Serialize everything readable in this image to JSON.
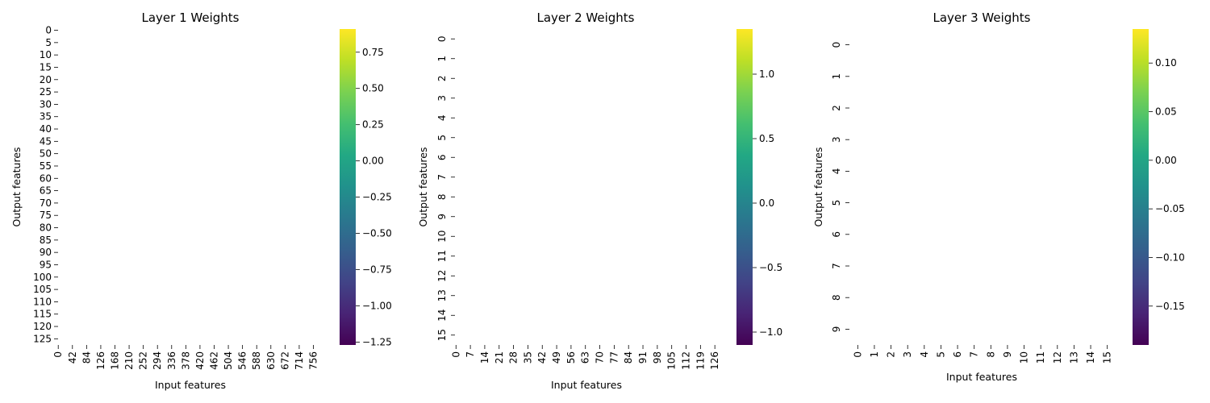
{
  "chart_data": [
    {
      "type": "heatmap",
      "title": "Layer 1 Weights",
      "xlabel": "Input features",
      "ylabel": "Output features",
      "x_ticks": [
        "0",
        "42",
        "84",
        "126",
        "168",
        "210",
        "252",
        "294",
        "336",
        "378",
        "420",
        "462",
        "504",
        "546",
        "588",
        "630",
        "672",
        "714",
        "756"
      ],
      "y_ticks": [
        "0",
        "5",
        "10",
        "15",
        "20",
        "25",
        "30",
        "35",
        "40",
        "45",
        "50",
        "55",
        "60",
        "65",
        "70",
        "75",
        "80",
        "85",
        "90",
        "95",
        "100",
        "105",
        "110",
        "115",
        "120",
        "125"
      ],
      "x_count": 784,
      "y_count": 128,
      "x_tick_step": 42,
      "y_tick_step": 5,
      "y_tick_rotation": 0,
      "colormap": "viridis",
      "colorbar_range": [
        -1.27,
        0.91
      ],
      "colorbar_ticks": [
        "0.75",
        "0.50",
        "0.25",
        "0.00",
        "−0.25",
        "−0.50",
        "−0.75",
        "−1.00",
        "−1.25"
      ],
      "colorbar_tick_values": [
        0.75,
        0.5,
        0.25,
        0.0,
        -0.25,
        -0.5,
        -0.75,
        -1.0,
        -1.25
      ]
    },
    {
      "type": "heatmap",
      "title": "Layer 2 Weights",
      "xlabel": "Input features",
      "ylabel": "Output features",
      "x_ticks": [
        "0",
        "7",
        "14",
        "21",
        "28",
        "35",
        "42",
        "49",
        "56",
        "63",
        "70",
        "77",
        "84",
        "91",
        "98",
        "105",
        "112",
        "119",
        "126"
      ],
      "y_ticks": [
        "0",
        "1",
        "2",
        "3",
        "4",
        "5",
        "6",
        "7",
        "8",
        "9",
        "10",
        "11",
        "12",
        "13",
        "14",
        "15"
      ],
      "x_count": 128,
      "y_count": 16,
      "x_tick_step": 7,
      "y_tick_step": 1,
      "y_tick_rotation": -90,
      "colormap": "viridis",
      "colorbar_range": [
        -1.1,
        1.35
      ],
      "colorbar_ticks": [
        "1.0",
        "0.5",
        "0.0",
        "−0.5",
        "−1.0"
      ],
      "colorbar_tick_values": [
        1.0,
        0.5,
        0.0,
        -0.5,
        -1.0
      ]
    },
    {
      "type": "heatmap",
      "title": "Layer 3 Weights",
      "xlabel": "Input features",
      "ylabel": "Output features",
      "x_ticks": [
        "0",
        "1",
        "2",
        "3",
        "4",
        "5",
        "6",
        "7",
        "8",
        "9",
        "10",
        "11",
        "12",
        "13",
        "14",
        "15"
      ],
      "y_ticks": [
        "0",
        "1",
        "2",
        "3",
        "4",
        "5",
        "6",
        "7",
        "8",
        "9"
      ],
      "x_count": 16,
      "y_count": 10,
      "x_tick_step": 1,
      "y_tick_step": 1,
      "y_tick_rotation": -90,
      "colormap": "viridis",
      "colorbar_range": [
        -0.19,
        0.135
      ],
      "colorbar_ticks": [
        "0.10",
        "0.05",
        "0.00",
        "−0.05",
        "−0.10",
        "−0.15"
      ],
      "colorbar_tick_values": [
        0.1,
        0.05,
        0.0,
        -0.05,
        -0.1,
        -0.15
      ]
    }
  ]
}
